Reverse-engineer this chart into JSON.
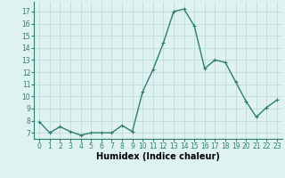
{
  "x": [
    0,
    1,
    2,
    3,
    4,
    5,
    6,
    7,
    8,
    9,
    10,
    11,
    12,
    13,
    14,
    15,
    16,
    17,
    18,
    19,
    20,
    21,
    22,
    23
  ],
  "y": [
    7.9,
    7.0,
    7.5,
    7.1,
    6.8,
    7.0,
    7.0,
    7.0,
    7.6,
    7.1,
    10.4,
    12.2,
    14.4,
    17.0,
    17.2,
    15.8,
    12.3,
    13.0,
    12.8,
    11.2,
    9.6,
    8.3,
    9.1,
    9.7
  ],
  "line_color": "#2e7d6e",
  "marker": "+",
  "marker_size": 3,
  "bg_color": "#dff2f2",
  "grid_color": "#b8d8d8",
  "xlabel": "Humidex (Indice chaleur)",
  "ylim": [
    6.5,
    17.8
  ],
  "xlim": [
    -0.5,
    23.5
  ],
  "yticks": [
    7,
    8,
    9,
    10,
    11,
    12,
    13,
    14,
    15,
    16,
    17
  ],
  "xticks": [
    0,
    1,
    2,
    3,
    4,
    5,
    6,
    7,
    8,
    9,
    10,
    11,
    12,
    13,
    14,
    15,
    16,
    17,
    18,
    19,
    20,
    21,
    22,
    23
  ],
  "tick_label_fontsize": 5.5,
  "xlabel_fontsize": 7,
  "linewidth": 1.0,
  "markeredgewidth": 0.8
}
